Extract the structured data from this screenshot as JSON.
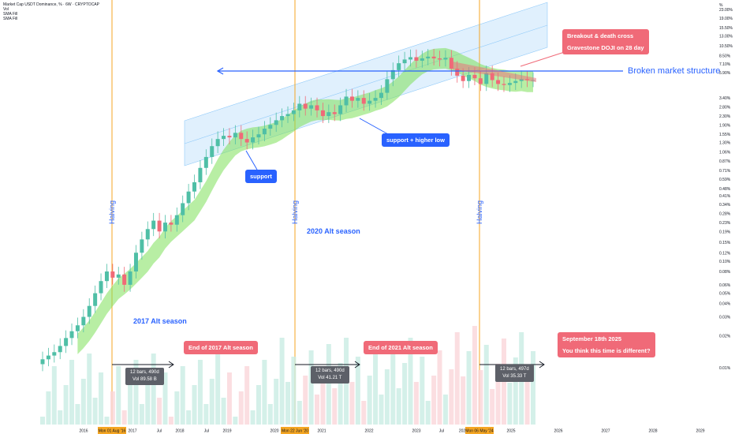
{
  "header": {
    "title": "Market Cap USDT Dominance, % · 6W · CRYPTOCAP",
    "legend_items": [
      "Vol",
      "SMA Fill",
      "SMA Fill"
    ]
  },
  "annotations": {
    "breakout": [
      "Breakout & death cross",
      "Gravestone DOJI on 28 day"
    ],
    "broken_structure": "Broken market structure",
    "support": "support",
    "support_higher_low": "support + higher low",
    "season_2017": "2017 Alt season",
    "season_2020": "2020 Alt season",
    "halving": "Halving",
    "end_2017": "End of 2017 Alt season",
    "end_2021": "End of 2021 Alt season",
    "sept_2025": [
      "September 18th 2025",
      "You think this time is different?"
    ]
  },
  "bar_stats": [
    {
      "bars": "12 bars, 490d",
      "vol": "Vol 89.58 B"
    },
    {
      "bars": "12 bars, 490d",
      "vol": "Vol 41.21 T"
    },
    {
      "bars": "12 bars, 497d",
      "vol": "Vol 35.33 T"
    }
  ],
  "colors": {
    "up": "#4fbfa6",
    "down": "#f06a78",
    "channel": "#bbdefb",
    "ma": "#7ee05a",
    "halving_line": "#f5a623",
    "accent": "#2962ff"
  },
  "chart_data": {
    "type": "candlestick",
    "title": "Market Cap USDT Dominance, %",
    "interval": "6W",
    "source": "CRYPTOCAP",
    "y_scale": "log",
    "y_unit": "%",
    "y_ticks": [
      "23.00%",
      "19.00%",
      "15.50%",
      "13.00%",
      "10.50%",
      "8.50%",
      "7.10%",
      "5.90%",
      "3.40%",
      "2.80%",
      "2.30%",
      "1.90%",
      "1.55%",
      "1.30%",
      "1.06%",
      "0.87%",
      "0.71%",
      "0.59%",
      "0.48%",
      "0.41%",
      "0.34%",
      "0.28%",
      "0.23%",
      "0.19%",
      "0.15%",
      "0.12%",
      "0.10%",
      "0.08%",
      "0.06%",
      "0.05%",
      "0.04%",
      "0.03%",
      "0.02%",
      "0.01%"
    ],
    "y_axis_header": "%",
    "x_ticks": [
      "2016",
      "Mon 01 Aug '16",
      "2017",
      "Jul",
      "2018",
      "Jul",
      "2019",
      "2020",
      "Mon 22 Jun '20",
      "2021",
      "2022",
      "2023",
      "Jul",
      "202",
      "Mon 06 May '24",
      "2025",
      "2026",
      "2027",
      "2028",
      "2029"
    ],
    "halvings": [
      "Mon 01 Aug '16",
      "Mon 22 Jun '20",
      "Mon 06 May '24"
    ],
    "candles_close_pct": [
      0.012,
      0.013,
      0.014,
      0.016,
      0.019,
      0.022,
      0.025,
      0.03,
      0.038,
      0.05,
      0.065,
      0.08,
      0.07,
      0.075,
      0.06,
      0.08,
      0.12,
      0.16,
      0.2,
      0.24,
      0.19,
      0.23,
      0.22,
      0.27,
      0.35,
      0.45,
      0.55,
      0.75,
      0.95,
      1.2,
      1.4,
      1.5,
      1.45,
      1.6,
      1.4,
      1.3,
      1.45,
      1.55,
      1.75,
      1.9,
      2.1,
      2.3,
      2.4,
      2.6,
      3.0,
      2.7,
      2.9,
      2.6,
      2.3,
      2.5,
      2.4,
      2.9,
      3.5,
      3.2,
      3.4,
      3.0,
      3.2,
      3.4,
      3.8,
      5.1,
      6.2,
      7.2,
      7.8,
      8.2,
      7.6,
      8.0,
      8.3,
      8.0,
      7.8,
      8.1,
      6.4,
      5.5,
      4.9,
      5.6,
      5.2,
      4.6,
      5.8,
      5.0,
      4.6,
      4.5,
      4.7,
      4.9,
      5.1,
      5.0,
      5.0
    ],
    "volume_note": "Vol histogram",
    "channel": "rising parallel channel 2017–2025",
    "horizontal_level": "Broken market structure",
    "grid": false,
    "legend": "top-left"
  }
}
